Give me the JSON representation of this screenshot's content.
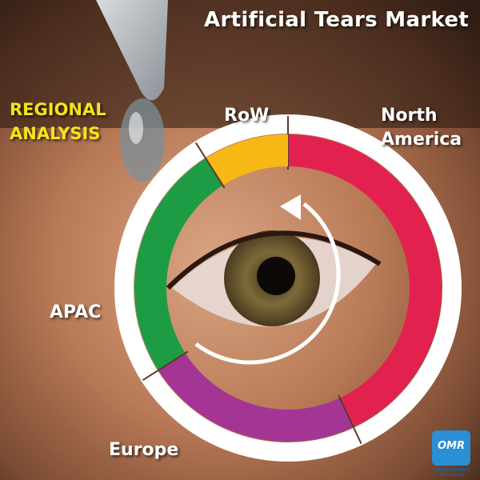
{
  "chart_data": {
    "type": "pie",
    "style": "donut",
    "title": "Artificial Tears Market",
    "subtitle": "REGIONAL ANALYSIS",
    "categories": [
      "North America",
      "Europe",
      "APAC",
      "RoW"
    ],
    "values": [
      43,
      23,
      25,
      9
    ],
    "colors": [
      "#e3214f",
      "#a43595",
      "#1e9b45",
      "#f6b814"
    ],
    "grid": false,
    "legend": "direct labels"
  },
  "labels": {
    "north_america": "North America",
    "row": "RoW",
    "apac": "APAC",
    "europe": "Europe"
  },
  "logo": {
    "mark": "OMR",
    "caption": "ORION MARKET RESEARCH"
  }
}
